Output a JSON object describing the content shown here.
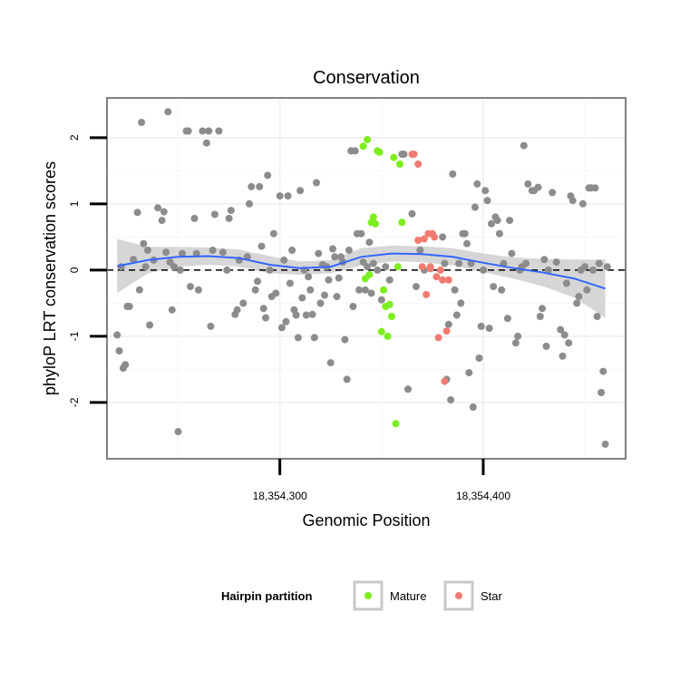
{
  "chart_data": {
    "type": "scatter",
    "title": "Conservation",
    "xlabel": "Genomic Position",
    "ylabel": "phyloP LRT conservation scores",
    "xlim": [
      18354215,
      18354470
    ],
    "ylim": [
      -2.85,
      2.6
    ],
    "x_ticks": [
      18354300,
      18354400
    ],
    "x_tick_labels": [
      "18,354,300",
      "18,354,400"
    ],
    "y_ticks": [
      -2,
      -1,
      0,
      1,
      2
    ],
    "y_tick_labels": [
      "-2",
      "-1",
      "0",
      "1",
      "2"
    ],
    "reference_line": {
      "y": 0,
      "style": "dashed"
    },
    "grid": true,
    "colors": {
      "background_points": "#8c8c8c",
      "Mature": "#7cee1d",
      "Star": "#f07b72",
      "smooth": "#3366ff",
      "ribbon": "#c8c8c8"
    },
    "series": [
      {
        "name": "",
        "color_key": "background_points",
        "points": [
          [
            18354220,
            -0.98
          ],
          [
            18354221,
            -1.22
          ],
          [
            18354223,
            -1.48
          ],
          [
            18354224,
            -1.43
          ],
          [
            18354222,
            0.05
          ],
          [
            18354225,
            -0.55
          ],
          [
            18354226,
            -0.55
          ],
          [
            18354228,
            0.16
          ],
          [
            18354230,
            0.87
          ],
          [
            18354232,
            2.23
          ],
          [
            18354231,
            -0.3
          ],
          [
            18354233,
            0.4
          ],
          [
            18354234,
            0.05
          ],
          [
            18354235,
            0.3
          ],
          [
            18354236,
            -0.83
          ],
          [
            18354238,
            0.15
          ],
          [
            18354240,
            0.94
          ],
          [
            18354242,
            0.75
          ],
          [
            18354243,
            0.88
          ],
          [
            18354244,
            0.27
          ],
          [
            18354245,
            2.39
          ],
          [
            18354246,
            0.12
          ],
          [
            18354247,
            -0.6
          ],
          [
            18354248,
            0.05
          ],
          [
            18354250,
            -2.44
          ],
          [
            18354251,
            0.0
          ],
          [
            18354252,
            0.25
          ],
          [
            18354254,
            2.1
          ],
          [
            18354255,
            2.1
          ],
          [
            18354256,
            -0.25
          ],
          [
            18354258,
            0.78
          ],
          [
            18354259,
            0.25
          ],
          [
            18354260,
            -0.3
          ],
          [
            18354262,
            2.1
          ],
          [
            18354264,
            1.92
          ],
          [
            18354265,
            2.1
          ],
          [
            18354266,
            -0.85
          ],
          [
            18354267,
            0.3
          ],
          [
            18354268,
            0.84
          ],
          [
            18354270,
            2.1
          ],
          [
            18354272,
            0.27
          ],
          [
            18354274,
            0.0
          ],
          [
            18354275,
            0.78
          ],
          [
            18354276,
            0.9
          ],
          [
            18354278,
            -0.67
          ],
          [
            18354279,
            -0.6
          ],
          [
            18354280,
            0.15
          ],
          [
            18354282,
            -0.5
          ],
          [
            18354284,
            0.2
          ],
          [
            18354285,
            1.0
          ],
          [
            18354286,
            1.26
          ],
          [
            18354288,
            -0.3
          ],
          [
            18354289,
            -0.17
          ],
          [
            18354290,
            1.26
          ],
          [
            18354291,
            0.36
          ],
          [
            18354292,
            -0.58
          ],
          [
            18354293,
            -0.72
          ],
          [
            18354294,
            1.43
          ],
          [
            18354295,
            0.0
          ],
          [
            18354296,
            -0.4
          ],
          [
            18354297,
            0.55
          ],
          [
            18354298,
            -0.35
          ],
          [
            18354300,
            1.12
          ],
          [
            18354301,
            -0.87
          ],
          [
            18354302,
            0.15
          ],
          [
            18354303,
            -0.78
          ],
          [
            18354304,
            1.12
          ],
          [
            18354305,
            -0.2
          ],
          [
            18354306,
            0.3
          ],
          [
            18354307,
            -0.6
          ],
          [
            18354308,
            -0.68
          ],
          [
            18354309,
            -1.02
          ],
          [
            18354310,
            1.2
          ],
          [
            18354311,
            -0.42
          ],
          [
            18354312,
            0.0
          ],
          [
            18354313,
            -0.68
          ],
          [
            18354314,
            -0.1
          ],
          [
            18354315,
            -0.3
          ],
          [
            18354316,
            -0.67
          ],
          [
            18354317,
            -1.02
          ],
          [
            18354318,
            1.32
          ],
          [
            18354319,
            0.25
          ],
          [
            18354320,
            -0.5
          ],
          [
            18354321,
            0.08
          ],
          [
            18354322,
            -0.38
          ],
          [
            18354323,
            0.05
          ],
          [
            18354324,
            -0.15
          ],
          [
            18354325,
            -1.4
          ],
          [
            18354326,
            0.32
          ],
          [
            18354327,
            0.2
          ],
          [
            18354328,
            -0.4
          ],
          [
            18354329,
            -0.12
          ],
          [
            18354330,
            0.2
          ],
          [
            18354331,
            0.12
          ],
          [
            18354332,
            -1.05
          ],
          [
            18354333,
            -1.65
          ],
          [
            18354334,
            0.3
          ],
          [
            18354335,
            1.8
          ],
          [
            18354336,
            -0.55
          ],
          [
            18354337,
            1.8
          ],
          [
            18354338,
            0.55
          ],
          [
            18354339,
            -0.3
          ],
          [
            18354340,
            0.55
          ],
          [
            18354341,
            0.12
          ],
          [
            18354342,
            -0.3
          ],
          [
            18354343,
            0.05
          ],
          [
            18354344,
            0.42
          ],
          [
            18354345,
            -0.35
          ],
          [
            18354346,
            0.1
          ],
          [
            18354348,
            0.0
          ],
          [
            18354350,
            -0.45
          ],
          [
            18354352,
            0.05
          ],
          [
            18354354,
            -0.15
          ],
          [
            18354360,
            1.75
          ],
          [
            18354361,
            1.75
          ],
          [
            18354363,
            -1.8
          ],
          [
            18354365,
            0.85
          ],
          [
            18354367,
            -0.25
          ],
          [
            18354369,
            0.3
          ],
          [
            18354371,
            0.0
          ],
          [
            18354380,
            0.5
          ],
          [
            18354381,
            0.1
          ],
          [
            18354382,
            -1.65
          ],
          [
            18354383,
            -0.82
          ],
          [
            18354384,
            -1.96
          ],
          [
            18354385,
            1.45
          ],
          [
            18354386,
            -0.3
          ],
          [
            18354387,
            -0.68
          ],
          [
            18354388,
            0.1
          ],
          [
            18354389,
            -0.5
          ],
          [
            18354390,
            0.55
          ],
          [
            18354391,
            0.55
          ],
          [
            18354392,
            0.4
          ],
          [
            18354393,
            -1.55
          ],
          [
            18354394,
            0.1
          ],
          [
            18354395,
            -2.07
          ],
          [
            18354396,
            0.95
          ],
          [
            18354397,
            1.3
          ],
          [
            18354398,
            -1.33
          ],
          [
            18354399,
            -0.85
          ],
          [
            18354400,
            0.0
          ],
          [
            18354401,
            1.2
          ],
          [
            18354402,
            1.05
          ],
          [
            18354403,
            -0.88
          ],
          [
            18354404,
            0.7
          ],
          [
            18354405,
            -0.25
          ],
          [
            18354406,
            0.8
          ],
          [
            18354407,
            0.75
          ],
          [
            18354408,
            0.55
          ],
          [
            18354409,
            -0.3
          ],
          [
            18354410,
            0.1
          ],
          [
            18354412,
            -0.73
          ],
          [
            18354413,
            0.75
          ],
          [
            18354414,
            0.25
          ],
          [
            18354416,
            -1.1
          ],
          [
            18354417,
            -1.0
          ],
          [
            18354418,
            0.0
          ],
          [
            18354419,
            0.05
          ],
          [
            18354420,
            1.88
          ],
          [
            18354421,
            0.1
          ],
          [
            18354422,
            1.3
          ],
          [
            18354424,
            1.2
          ],
          [
            18354425,
            1.2
          ],
          [
            18354427,
            1.25
          ],
          [
            18354428,
            -0.7
          ],
          [
            18354429,
            -0.58
          ],
          [
            18354430,
            0.16
          ],
          [
            18354431,
            -1.15
          ],
          [
            18354432,
            0.0
          ],
          [
            18354434,
            1.17
          ],
          [
            18354436,
            0.12
          ],
          [
            18354438,
            -0.9
          ],
          [
            18354439,
            -1.3
          ],
          [
            18354440,
            -0.98
          ],
          [
            18354441,
            -0.2
          ],
          [
            18354442,
            -1.1
          ],
          [
            18354443,
            1.12
          ],
          [
            18354444,
            1.05
          ],
          [
            18354446,
            -0.5
          ],
          [
            18354447,
            -0.4
          ],
          [
            18354448,
            0.0
          ],
          [
            18354449,
            1.0
          ],
          [
            18354450,
            0.05
          ],
          [
            18354451,
            -0.3
          ],
          [
            18354452,
            1.24
          ],
          [
            18354453,
            1.24
          ],
          [
            18354454,
            0.0
          ],
          [
            18354455,
            1.24
          ],
          [
            18354456,
            -0.7
          ],
          [
            18354457,
            0.1
          ],
          [
            18354458,
            -1.85
          ],
          [
            18354459,
            -1.53
          ],
          [
            18354460,
            -2.63
          ],
          [
            18354461,
            0.05
          ]
        ]
      },
      {
        "name": "Mature",
        "color_key": "Mature",
        "points": [
          [
            18354341,
            1.87
          ],
          [
            18354343,
            1.97
          ],
          [
            18354345,
            0.72
          ],
          [
            18354346,
            0.8
          ],
          [
            18354347,
            0.7
          ],
          [
            18354348,
            1.8
          ],
          [
            18354349,
            1.78
          ],
          [
            18354350,
            -0.93
          ],
          [
            18354351,
            -0.3
          ],
          [
            18354352,
            -0.55
          ],
          [
            18354353,
            -1.0
          ],
          [
            18354354,
            -0.52
          ],
          [
            18354355,
            -0.7
          ],
          [
            18354356,
            1.7
          ],
          [
            18354357,
            -2.32
          ],
          [
            18354358,
            0.05
          ],
          [
            18354359,
            1.6
          ],
          [
            18354360,
            0.72
          ],
          [
            18354342,
            -0.13
          ],
          [
            18354344,
            -0.07
          ]
        ]
      },
      {
        "name": "Star",
        "color_key": "Star",
        "points": [
          [
            18354365,
            1.75
          ],
          [
            18354366,
            1.75
          ],
          [
            18354368,
            1.6
          ],
          [
            18354368,
            0.45
          ],
          [
            18354370,
            0.05
          ],
          [
            18354371,
            0.47
          ],
          [
            18354372,
            -0.37
          ],
          [
            18354373,
            0.55
          ],
          [
            18354374,
            0.05
          ],
          [
            18354375,
            0.55
          ],
          [
            18354376,
            0.5
          ],
          [
            18354377,
            -0.1
          ],
          [
            18354378,
            -1.02
          ],
          [
            18354379,
            0.0
          ],
          [
            18354380,
            -0.15
          ],
          [
            18354381,
            -1.68
          ],
          [
            18354382,
            -0.92
          ],
          [
            18354383,
            -0.15
          ],
          [
            18354374,
            0.02
          ]
        ]
      }
    ],
    "smooth": {
      "x": [
        18354220,
        18354235,
        18354250,
        18354265,
        18354280,
        18354295,
        18354310,
        18354325,
        18354340,
        18354355,
        18354370,
        18354385,
        18354400,
        18354415,
        18354430,
        18354445,
        18354460
      ],
      "y": [
        0.06,
        0.15,
        0.2,
        0.21,
        0.18,
        0.08,
        0.03,
        0.05,
        0.2,
        0.25,
        0.24,
        0.2,
        0.11,
        0.03,
        -0.04,
        -0.13,
        -0.28
      ],
      "lower": [
        -0.35,
        -0.05,
        0.05,
        0.08,
        0.05,
        -0.05,
        -0.07,
        -0.05,
        0.07,
        0.13,
        0.12,
        0.07,
        -0.03,
        -0.13,
        -0.25,
        -0.42,
        -0.72
      ],
      "upper": [
        0.47,
        0.35,
        0.35,
        0.34,
        0.31,
        0.21,
        0.13,
        0.15,
        0.33,
        0.37,
        0.36,
        0.33,
        0.25,
        0.19,
        0.17,
        0.16,
        0.16
      ]
    },
    "legend": {
      "title": "Hairpin partition",
      "position": "bottom",
      "entries": [
        {
          "label": "Mature",
          "color_key": "Mature"
        },
        {
          "label": "Star",
          "color_key": "Star"
        }
      ]
    }
  }
}
